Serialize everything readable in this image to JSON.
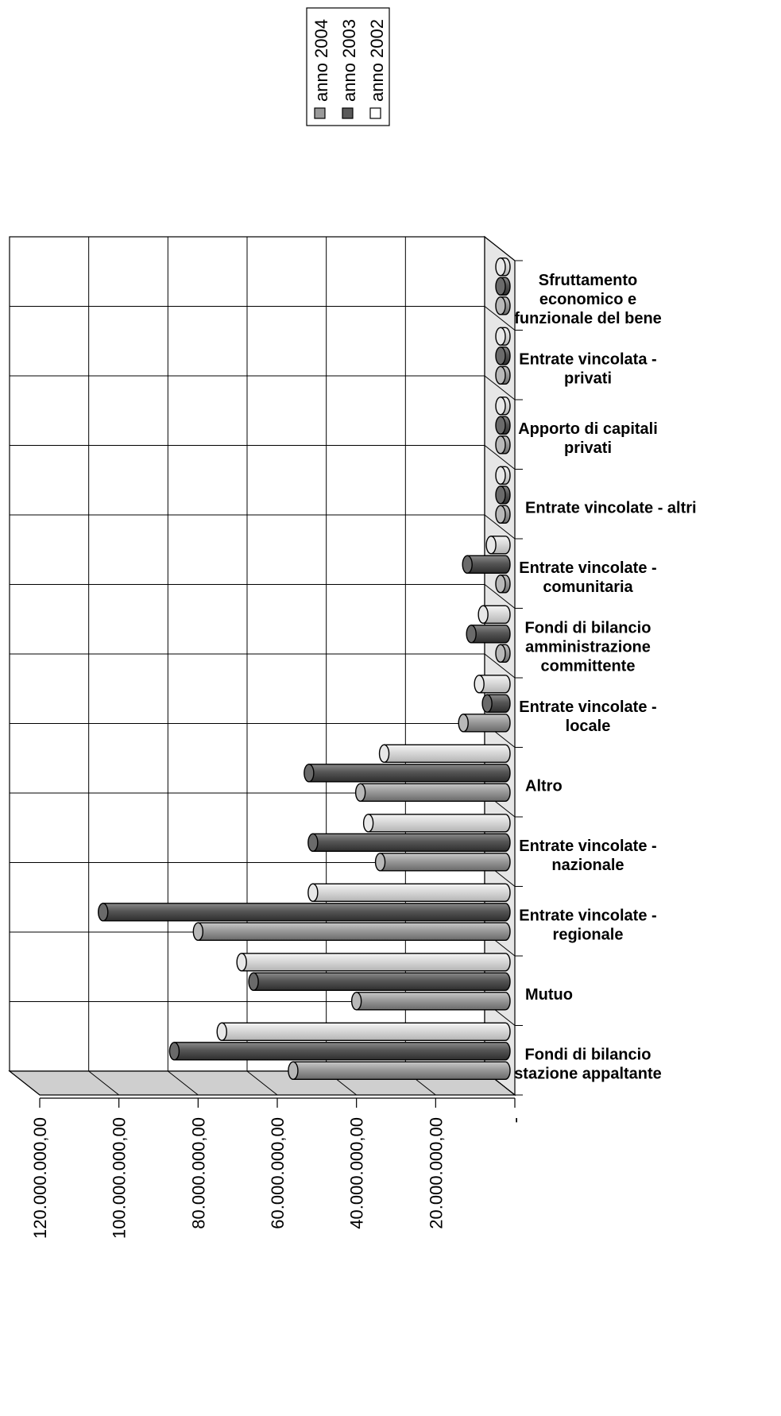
{
  "chart_data": {
    "type": "bar",
    "orientation": "horizontal",
    "style": "3d-cylinder",
    "categories": [
      "Sfruttamento economico  e funzionale del bene",
      "Entrate vincolata - privati",
      "Apporto di capitali privati",
      "Entrate vincolate  - altri",
      "Entrate vincolate  - comunitaria",
      "Fondi di bilancio amministrazione committente",
      "Entrate vincolate - locale",
      "Altro",
      "Entrate vincolate - nazionale",
      "Entrate vincolate - regionale",
      "Mutuo",
      "Fondi di bilancio stazione appaltante"
    ],
    "category_lines": [
      [
        "Sfruttamento",
        "economico  e",
        "funzionale del bene"
      ],
      [
        "Entrate vincolata -",
        "privati"
      ],
      [
        "Apporto di capitali",
        "privati"
      ],
      [
        "Entrate vincolate  - altri"
      ],
      [
        "Entrate vincolate  -",
        "comunitaria"
      ],
      [
        "Fondi di bilancio",
        "amministrazione",
        "committente"
      ],
      [
        "Entrate vincolate -",
        "locale"
      ],
      [
        "Altro"
      ],
      [
        "Entrate vincolate -",
        "nazionale"
      ],
      [
        "Entrate vincolate -",
        "regionale"
      ],
      [
        "Mutuo"
      ],
      [
        "Fondi di bilancio",
        "stazione appaltante"
      ]
    ],
    "series": [
      {
        "name": "anno 2004",
        "color": "#9a9a9a",
        "values": [
          200000,
          500000,
          600000,
          300000,
          3000000,
          2500000,
          13000000,
          39000000,
          34000000,
          80000000,
          40000000,
          56000000
        ]
      },
      {
        "name": "anno 2003",
        "color": "#5a5a5a",
        "values": [
          150000,
          500000,
          400000,
          200000,
          12000000,
          11000000,
          7000000,
          52000000,
          51000000,
          104000000,
          66000000,
          86000000
        ]
      },
      {
        "name": "anno 2002",
        "color": "#d6d6d6",
        "values": [
          0,
          200000,
          1300000,
          1500000,
          6000000,
          8000000,
          9000000,
          33000000,
          37000000,
          51000000,
          69000000,
          74000000
        ]
      }
    ],
    "xlim": [
      0,
      120000000
    ],
    "tick_labels": [
      "-",
      "20.000.000,00",
      "40.000.000,00",
      "60.000.000,00",
      "80.000.000,00",
      "100.000.000,00",
      "120.000.000,00"
    ],
    "legend": {
      "position": "top",
      "entries": [
        "anno 2004",
        "anno 2003",
        "anno 2002"
      ]
    },
    "grid": true
  }
}
